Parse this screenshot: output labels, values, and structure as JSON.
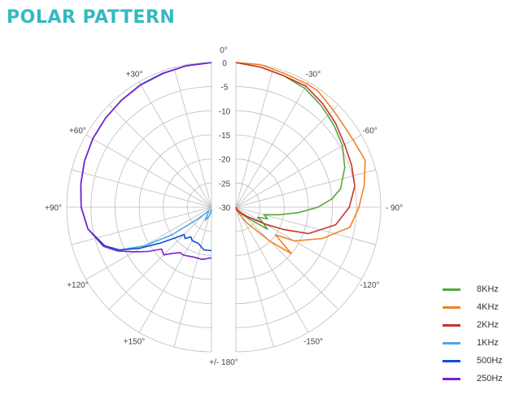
{
  "title": "POLAR PATTERN",
  "colors": {
    "title": "#34b9c1",
    "grid": "#bdbdbd",
    "text": "#444444"
  },
  "chart_data": {
    "type": "polar-line",
    "title": "POLAR PATTERN",
    "r_ticks": [
      "0",
      "-5",
      "-10",
      "-15",
      "-20",
      "-25",
      "-30"
    ],
    "r_range_db": [
      -30,
      0
    ],
    "angle_grid_step_deg": 15,
    "angle_labels": [
      {
        "deg": 0,
        "text": "0°"
      },
      {
        "deg": 30,
        "text": "+30°"
      },
      {
        "deg": 60,
        "text": "+60°"
      },
      {
        "deg": 90,
        "text": "+90°"
      },
      {
        "deg": 120,
        "text": "+120°"
      },
      {
        "deg": 150,
        "text": "+150°"
      },
      {
        "deg": -30,
        "text": "-30°"
      },
      {
        "deg": -60,
        "text": "-60°"
      },
      {
        "deg": -90,
        "text": "- 90°"
      },
      {
        "deg": -120,
        "text": "-120°"
      },
      {
        "deg": -150,
        "text": "-150°"
      },
      {
        "deg": 180,
        "text": "+/- 180°"
      }
    ],
    "legend_placement": "bottom-right",
    "series": [
      {
        "name": "8KHz",
        "color": "#56a83f",
        "side": "right",
        "points": [
          [
            0,
            0
          ],
          [
            10,
            -0.5
          ],
          [
            20,
            -1
          ],
          [
            30,
            -1.5
          ],
          [
            40,
            -2.5
          ],
          [
            50,
            -3.5
          ],
          [
            60,
            -4.5
          ],
          [
            70,
            -6
          ],
          [
            80,
            -8
          ],
          [
            85,
            -10
          ],
          [
            90,
            -13
          ],
          [
            95,
            -17
          ],
          [
            100,
            -21
          ],
          [
            105,
            -24
          ],
          [
            110,
            -23
          ],
          [
            115,
            -25
          ],
          [
            120,
            -23.5
          ],
          [
            125,
            -22
          ],
          [
            130,
            -26
          ],
          [
            140,
            -28
          ],
          [
            150,
            -29
          ],
          [
            160,
            -29.5
          ],
          [
            170,
            -29.8
          ],
          [
            180,
            -30
          ]
        ]
      },
      {
        "name": "4KHz",
        "color": "#f08421",
        "side": "right",
        "points": [
          [
            0,
            0
          ],
          [
            10,
            0
          ],
          [
            20,
            -0.5
          ],
          [
            30,
            -0.5
          ],
          [
            35,
            -0.5
          ],
          [
            45,
            -1.5
          ],
          [
            55,
            -2
          ],
          [
            60,
            -2
          ],
          [
            70,
            -1.5
          ],
          [
            80,
            -3
          ],
          [
            90,
            -4.5
          ],
          [
            100,
            -6
          ],
          [
            110,
            -11
          ],
          [
            120,
            -16
          ],
          [
            125,
            -20
          ],
          [
            130,
            -15
          ],
          [
            135,
            -20
          ],
          [
            145,
            -26
          ],
          [
            160,
            -29
          ],
          [
            170,
            -29.5
          ],
          [
            180,
            -30
          ]
        ]
      },
      {
        "name": "2KHz",
        "color": "#c8332b",
        "side": "right",
        "points": [
          [
            0,
            0
          ],
          [
            10,
            -0.5
          ],
          [
            20,
            -1
          ],
          [
            30,
            -1
          ],
          [
            40,
            -2
          ],
          [
            50,
            -3
          ],
          [
            60,
            -4
          ],
          [
            70,
            -4.5
          ],
          [
            80,
            -5
          ],
          [
            90,
            -6.5
          ],
          [
            100,
            -9
          ],
          [
            110,
            -14
          ],
          [
            115,
            -19
          ],
          [
            120,
            -23
          ],
          [
            130,
            -27
          ],
          [
            145,
            -29
          ],
          [
            160,
            -29.5
          ],
          [
            180,
            -30
          ]
        ]
      },
      {
        "name": "1KHz",
        "color": "#4da7e8",
        "side": "left",
        "points": [
          [
            0,
            0
          ],
          [
            10,
            -0.2
          ],
          [
            20,
            -0.4
          ],
          [
            30,
            -0.6
          ],
          [
            40,
            -1
          ],
          [
            50,
            -1.3
          ],
          [
            60,
            -1.6
          ],
          [
            70,
            -2
          ],
          [
            80,
            -2.5
          ],
          [
            90,
            -3
          ],
          [
            100,
            -4
          ],
          [
            110,
            -6.5
          ],
          [
            115,
            -9
          ],
          [
            120,
            -14
          ],
          [
            125,
            -20
          ],
          [
            130,
            -26
          ],
          [
            135,
            -28
          ],
          [
            145,
            -29
          ],
          [
            155,
            -27
          ],
          [
            165,
            -28
          ],
          [
            175,
            -29
          ],
          [
            180,
            -29.5
          ]
        ]
      },
      {
        "name": "500Hz",
        "color": "#0a4fd1",
        "side": "left",
        "points": [
          [
            0,
            0
          ],
          [
            10,
            -0.2
          ],
          [
            20,
            -0.5
          ],
          [
            30,
            -0.7
          ],
          [
            40,
            -1
          ],
          [
            50,
            -1.3
          ],
          [
            60,
            -1.6
          ],
          [
            70,
            -2
          ],
          [
            80,
            -2.5
          ],
          [
            90,
            -3
          ],
          [
            100,
            -4
          ],
          [
            110,
            -6.5
          ],
          [
            115,
            -9
          ],
          [
            120,
            -13
          ],
          [
            125,
            -17
          ],
          [
            130,
            -20
          ],
          [
            135,
            -22
          ],
          [
            140,
            -21.5
          ],
          [
            145,
            -22.5
          ],
          [
            150,
            -22
          ],
          [
            160,
            -22
          ],
          [
            170,
            -21
          ],
          [
            180,
            -21
          ]
        ]
      },
      {
        "name": "250Hz",
        "color": "#7d1fd6",
        "side": "left",
        "points": [
          [
            0,
            0
          ],
          [
            10,
            -0.2
          ],
          [
            20,
            -0.5
          ],
          [
            30,
            -0.7
          ],
          [
            40,
            -1
          ],
          [
            50,
            -1.3
          ],
          [
            60,
            -1.6
          ],
          [
            70,
            -2
          ],
          [
            80,
            -2.5
          ],
          [
            90,
            -3
          ],
          [
            100,
            -4
          ],
          [
            110,
            -6.2
          ],
          [
            115,
            -8.5
          ],
          [
            120,
            -11.5
          ],
          [
            125,
            -14
          ],
          [
            130,
            -16.5
          ],
          [
            135,
            -16
          ],
          [
            140,
            -17.5
          ],
          [
            145,
            -18.5
          ],
          [
            150,
            -18.5
          ],
          [
            160,
            -19
          ],
          [
            170,
            -19
          ],
          [
            180,
            -19.5
          ]
        ]
      }
    ]
  }
}
